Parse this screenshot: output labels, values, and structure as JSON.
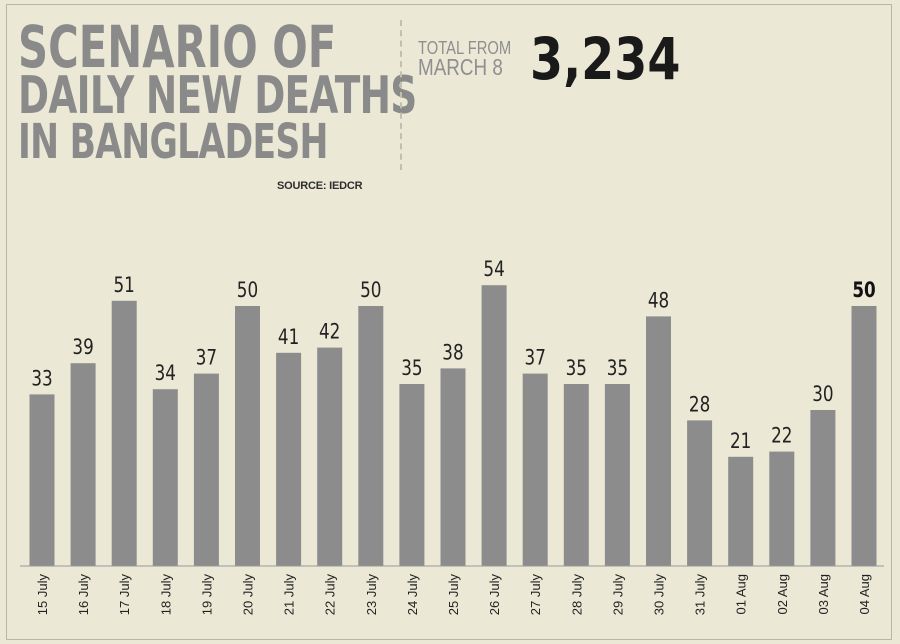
{
  "title": {
    "line1": "SCENARIO OF",
    "line2": "DAILY NEW DEATHS",
    "line3": "IN BANGLADESH"
  },
  "source": "SOURCE: IEDCR",
  "total": {
    "label_line1": "TOTAL FROM",
    "label_line2": "MARCH 8",
    "value": "3,234"
  },
  "colors": {
    "background": "#ebe8d6",
    "bar": "#8c8c8c",
    "title": "#8a8a8a",
    "label": "#222222"
  },
  "chart_data": {
    "type": "bar",
    "categories": [
      "15 July",
      "16 July",
      "17 July",
      "18 July",
      "19 July",
      "20 July",
      "21 July",
      "22 July",
      "23 July",
      "24 July",
      "25 July",
      "26 July",
      "27 July",
      "28 July",
      "29 July",
      "30 July",
      "31 July",
      "01 Aug",
      "02 Aug",
      "03 Aug",
      "04 Aug"
    ],
    "values": [
      33,
      39,
      51,
      34,
      37,
      50,
      41,
      42,
      50,
      35,
      38,
      54,
      37,
      35,
      35,
      48,
      28,
      21,
      22,
      30,
      50
    ],
    "highlight_last": true,
    "xlabel": "",
    "ylabel": "",
    "ylim": [
      0,
      54
    ],
    "grid": false
  }
}
